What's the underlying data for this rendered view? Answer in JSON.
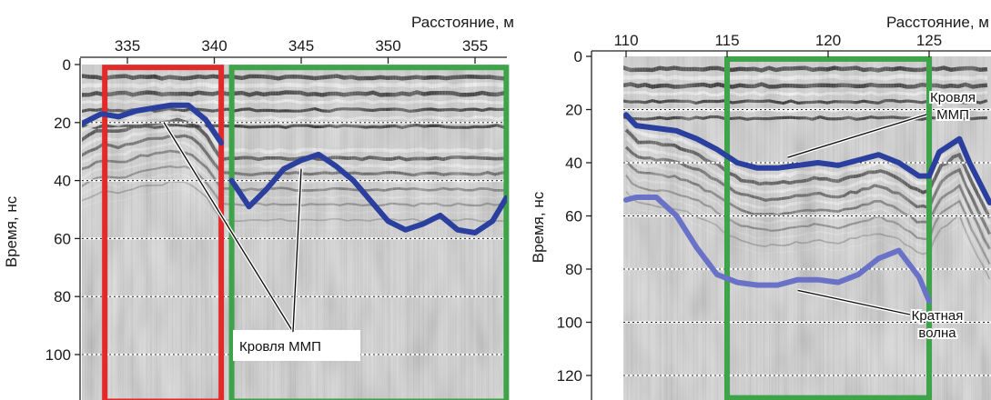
{
  "colors": {
    "reflector": "#2b3f9e",
    "multiple": "#6a72c8",
    "box_red": "#e32a2a",
    "box_green": "#3fa34a",
    "label_bg": "#ffffff"
  },
  "chart_data": [
    {
      "type": "line",
      "xlabel": "Расстояние, м",
      "ylabel": "Время, нс",
      "xlim": [
        331.5,
        357
      ],
      "ylim": [
        0,
        113
      ],
      "y_inverted": true,
      "x_ticks": [
        "335",
        "340",
        "345",
        "350",
        "355"
      ],
      "y_ticks": [
        "0",
        "20",
        "40",
        "60",
        "80",
        "100"
      ],
      "grid_dotted_y": [
        20,
        40,
        60,
        80,
        100
      ],
      "highlight_boxes": [
        {
          "color": "red",
          "x": [
            333.7,
            340.4
          ],
          "y": [
            1,
            113
          ]
        },
        {
          "color": "green",
          "x": [
            341.0,
            356.8
          ],
          "y": [
            1,
            113
          ]
        }
      ],
      "annotations": [
        {
          "text": "Кровля ММП",
          "points_to": [
            [
              337.1,
              20
            ],
            [
              345.0,
              36
            ]
          ]
        }
      ],
      "series": [
        {
          "style": "reflector",
          "x": [
            331.5,
            332.5,
            333.5,
            334.5,
            335.5,
            336.5,
            337.5,
            338.5,
            339.5,
            340.4
          ],
          "y": [
            23,
            20,
            17,
            18,
            16,
            15,
            14,
            14,
            19,
            27
          ],
          "name": ""
        },
        {
          "style": "reflector",
          "x": [
            341.0,
            342.0,
            343.0,
            344.0,
            345.0,
            346.0,
            347.0,
            348.0,
            349.0,
            350.0,
            351.0,
            352.0,
            353.0,
            354.0,
            355.0,
            356.0,
            356.8
          ],
          "y": [
            40,
            49,
            43,
            36,
            33,
            31,
            35,
            40,
            47,
            54,
            57,
            55,
            52,
            57,
            58,
            54,
            46
          ],
          "name": ""
        }
      ]
    },
    {
      "type": "line",
      "xlabel": "Расстояние, м",
      "ylabel": "Время, нс",
      "xlim": [
        110,
        128
      ],
      "ylim": [
        0,
        125
      ],
      "y_inverted": true,
      "x_ticks": [
        "110",
        "115",
        "120",
        "125"
      ],
      "y_ticks": [
        "0",
        "20",
        "40",
        "60",
        "80",
        "100",
        "120"
      ],
      "grid_dotted_y": [
        20,
        40,
        60,
        80,
        100,
        120
      ],
      "highlight_boxes": [
        {
          "color": "green",
          "x": [
            115.0,
            125.0
          ],
          "y": [
            1,
            125
          ]
        }
      ],
      "annotations": [
        {
          "text_lines": [
            "Кровля",
            "ММП"
          ],
          "points_to": [
            [
              118.0,
              38
            ]
          ]
        },
        {
          "text_lines": [
            "Кратная",
            "волна"
          ],
          "points_to": [
            [
              118.5,
              88
            ]
          ]
        }
      ],
      "series": [
        {
          "style": "reflector",
          "x": [
            110.0,
            110.5,
            111.5,
            112.5,
            113.5,
            114.5,
            115.5,
            116.5,
            117.5,
            118.5,
            119.5,
            120.5,
            121.5,
            122.5,
            123.5,
            124.5,
            125.0,
            125.5,
            126.5,
            127.0,
            128.0
          ],
          "y": [
            22,
            26,
            27,
            28,
            31,
            35,
            40,
            42,
            42,
            41,
            40,
            41,
            39,
            37,
            40,
            45,
            45,
            36,
            31,
            40,
            55
          ],
          "name": ""
        },
        {
          "style": "multiple",
          "x": [
            110.0,
            110.5,
            111.5,
            112.5,
            113.5,
            114.5,
            115.5,
            116.5,
            117.5,
            118.5,
            119.5,
            120.5,
            121.5,
            122.5,
            123.5,
            124.5,
            125.0
          ],
          "y": [
            54,
            53,
            53,
            60,
            72,
            82,
            85,
            86,
            86,
            84,
            84,
            85,
            82,
            76,
            73,
            83,
            92
          ],
          "name": ""
        }
      ]
    }
  ]
}
